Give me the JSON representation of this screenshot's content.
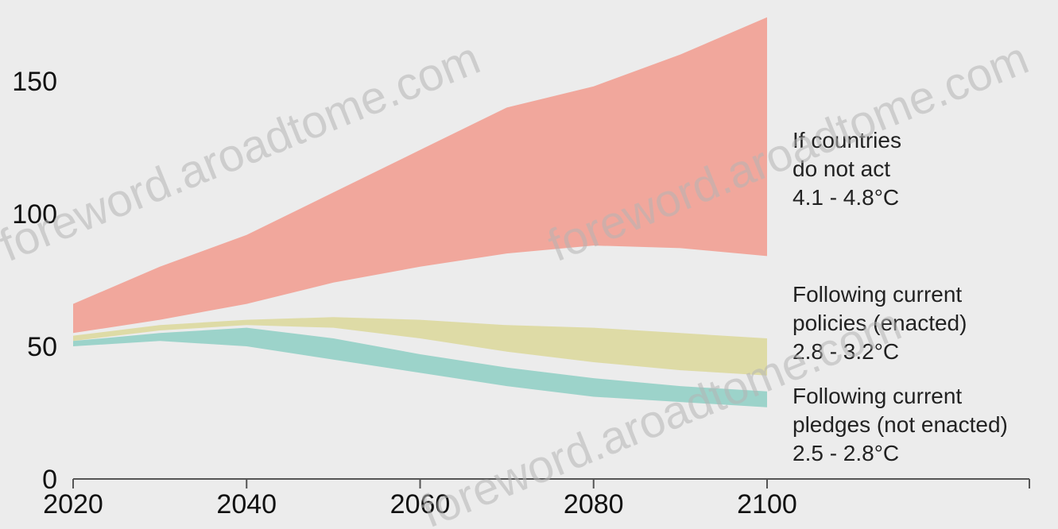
{
  "chart_data": {
    "type": "area",
    "title": "",
    "xlabel": "",
    "ylabel": "",
    "xlim": [
      2020,
      2100
    ],
    "ylim": [
      0,
      170
    ],
    "x_ticks": [
      2020,
      2040,
      2060,
      2080,
      2100
    ],
    "y_ticks": [
      0,
      50,
      100,
      150
    ],
    "x_tick_labels": [
      "2020",
      "2040",
      "2060",
      "2080",
      "2100"
    ],
    "y_tick_labels": [
      "0",
      "50",
      "100",
      "150"
    ],
    "grid": false,
    "series": [
      {
        "name": "If countries do not act 4.1 - 4.8°C",
        "label_lines": [
          "If countries",
          "do not act",
          "4.1 - 4.8°C"
        ],
        "color": "#f2a093",
        "x": [
          2020,
          2030,
          2040,
          2050,
          2060,
          2070,
          2080,
          2090,
          2100
        ],
        "low": [
          55,
          60,
          66,
          74,
          80,
          85,
          88,
          87,
          84
        ],
        "high": [
          66,
          80,
          92,
          108,
          124,
          140,
          148,
          160,
          174
        ]
      },
      {
        "name": "Following current policies (enacted) 2.8 - 3.2°C",
        "label_lines": [
          "Following current",
          "policies (enacted)",
          "2.8 - 3.2°C"
        ],
        "color": "#dcd89a",
        "x": [
          2020,
          2030,
          2040,
          2050,
          2060,
          2070,
          2080,
          2090,
          2100
        ],
        "low": [
          52,
          56,
          58,
          57,
          53,
          48,
          44,
          41,
          39
        ],
        "high": [
          54,
          58,
          60,
          61,
          60,
          58,
          57,
          55,
          53
        ]
      },
      {
        "name": "Following current pledges (not enacted) 2.5 - 2.8°C",
        "label_lines": [
          "Following current",
          "pledges (not enacted)",
          "2.5 - 2.8°C"
        ],
        "color": "#8ecfc4",
        "x": [
          2020,
          2030,
          2040,
          2050,
          2060,
          2070,
          2080,
          2090,
          2100
        ],
        "low": [
          50,
          52,
          50,
          45,
          40,
          35,
          31,
          29,
          27
        ],
        "high": [
          52,
          55,
          57,
          53,
          47,
          42,
          38,
          35,
          33
        ]
      }
    ],
    "watermarks": [
      "foreword.aroadtome.com",
      "foreword.aroadtome.com",
      "foreword.aroadtome.com"
    ]
  }
}
